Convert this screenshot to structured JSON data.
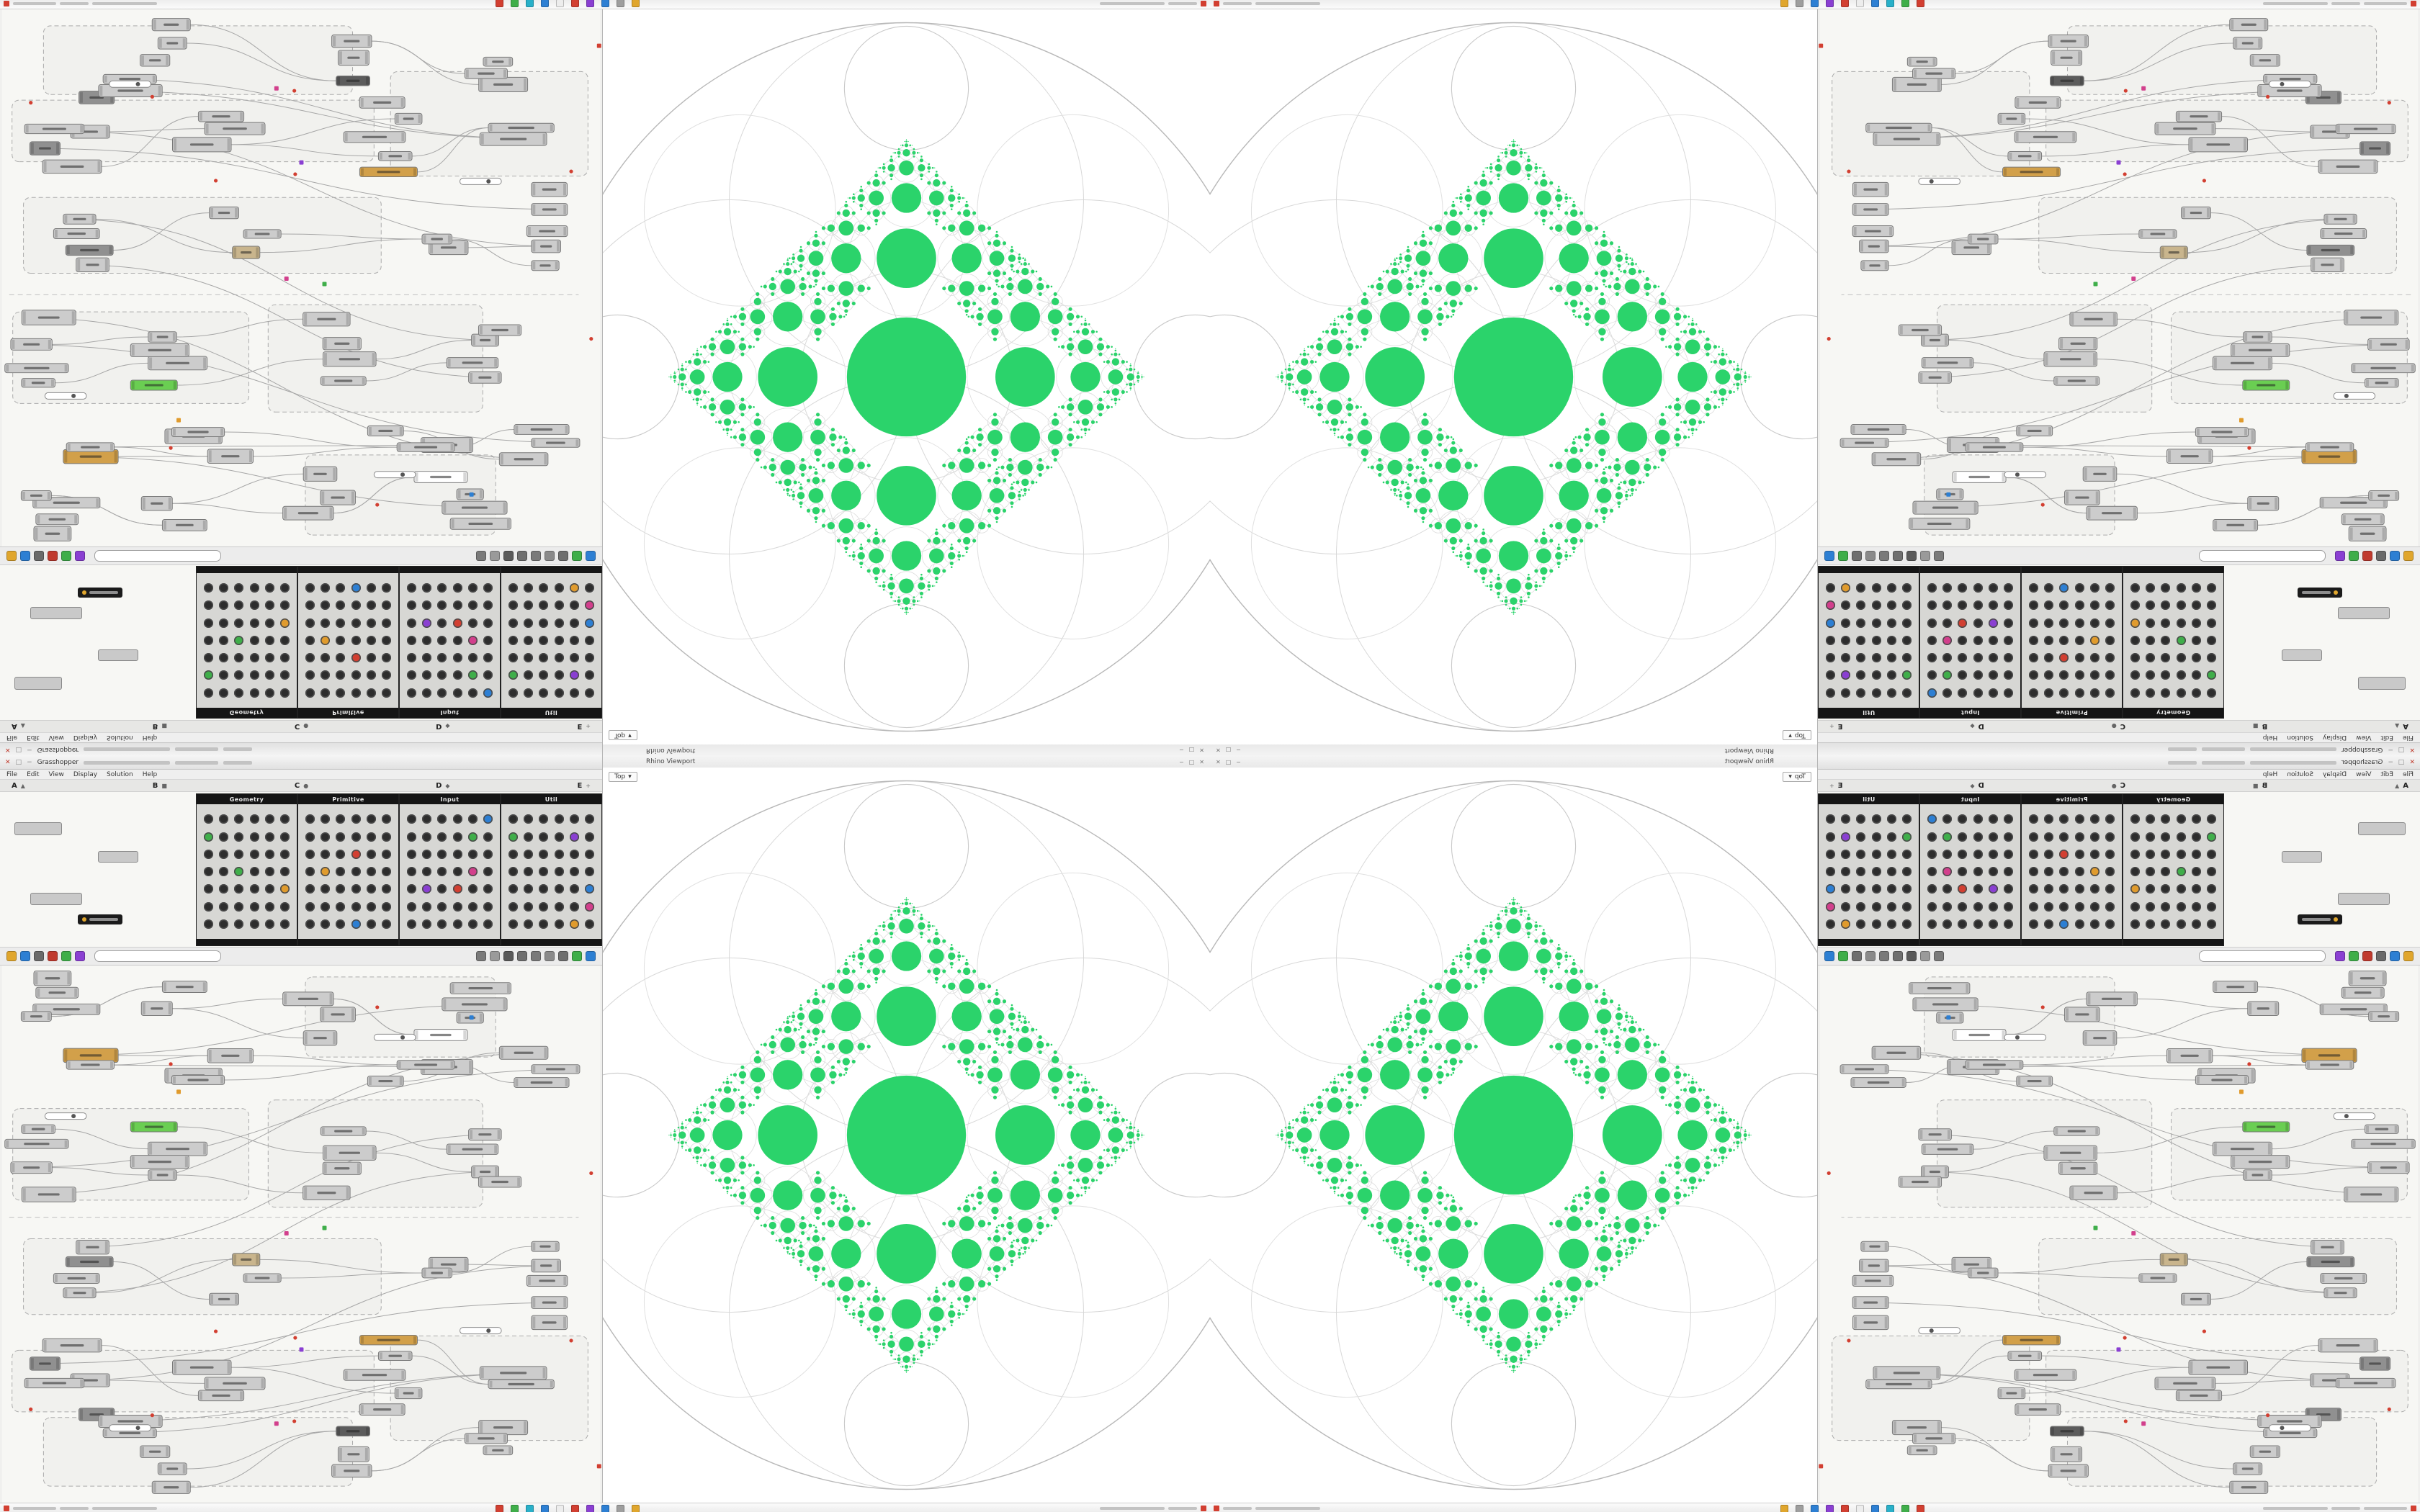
{
  "app": {
    "gh_window_title": "Grasshopper",
    "viewport_window_title": "Rhino Viewport",
    "viewport_tab_label": "Top",
    "viewport_tab_arrow": "▾"
  },
  "window_controls": {
    "close": "✕",
    "minimize": "−",
    "maximize": "□"
  },
  "menu": {
    "items": [
      "File",
      "Edit",
      "View",
      "Display",
      "Solution",
      "Help"
    ]
  },
  "component_tabs": {
    "tabs": [
      {
        "letter": "A",
        "glyph": "▲"
      },
      {
        "letter": "B",
        "glyph": "■"
      },
      {
        "letter": "C",
        "glyph": "●"
      },
      {
        "letter": "D",
        "glyph": "◆"
      },
      {
        "letter": "E",
        "glyph": "+"
      }
    ]
  },
  "palettes": {
    "groups": [
      {
        "label": "Geometry"
      },
      {
        "label": "Primitive"
      },
      {
        "label": "Input"
      },
      {
        "label": "Util"
      }
    ],
    "icon_accents": [
      "#d23f8c",
      "#8a3fd2",
      "#2d7fd3",
      "#3fae4a",
      "#e09b2d",
      "#d23f31"
    ]
  },
  "toolbar": {
    "search_placeholder": "",
    "left_icons": [
      {
        "name": "open-file-icon",
        "color": "#e0a62d"
      },
      {
        "name": "save-file-icon",
        "color": "#2d7fd3"
      },
      {
        "name": "zoom-icon",
        "color": "#6a6a6a"
      },
      {
        "name": "sketch-icon",
        "color": "#c03a2e"
      },
      {
        "name": "widget-icon",
        "color": "#3fae4a"
      },
      {
        "name": "pin-icon",
        "color": "#8a3fd2"
      }
    ],
    "right_icons": [
      {
        "name": "preview-wireframe-icon",
        "color": "#7a7a7a"
      },
      {
        "name": "preview-shaded-icon",
        "color": "#9a9a9a"
      },
      {
        "name": "eye-icon",
        "color": "#5a5a5a"
      },
      {
        "name": "camera-icon",
        "color": "#6f6f6f"
      },
      {
        "name": "group-icon",
        "color": "#7a7a7a"
      },
      {
        "name": "bake-icon",
        "color": "#8a8a8a"
      },
      {
        "name": "settings-icon",
        "color": "#6f6f6f"
      },
      {
        "name": "layers-green-icon",
        "color": "#3fae4a"
      },
      {
        "name": "layers-blue-icon",
        "color": "#2d7fd3"
      }
    ]
  },
  "taskbar": {
    "icons": [
      {
        "name": "app-icon-1",
        "color": "#d23f31"
      },
      {
        "name": "app-icon-2",
        "color": "#3fae4a"
      },
      {
        "name": "app-icon-3",
        "color": "#29b0c9"
      },
      {
        "name": "app-icon-4",
        "color": "#2d7fd3"
      },
      {
        "name": "app-icon-5",
        "color": "#ededed"
      },
      {
        "name": "app-icon-6",
        "color": "#d23f31"
      },
      {
        "name": "app-icon-7",
        "color": "#8a3fd2"
      },
      {
        "name": "app-icon-8",
        "color": "#2d7fd3"
      },
      {
        "name": "app-icon-9",
        "color": "#9e9e9e"
      },
      {
        "name": "app-icon-10",
        "color": "#e0a62d"
      }
    ]
  },
  "colors": {
    "accent_green": "#2bd36b",
    "canvas_bg": "#f7f7f4",
    "gasket_stroke": "#c9c9c9"
  }
}
